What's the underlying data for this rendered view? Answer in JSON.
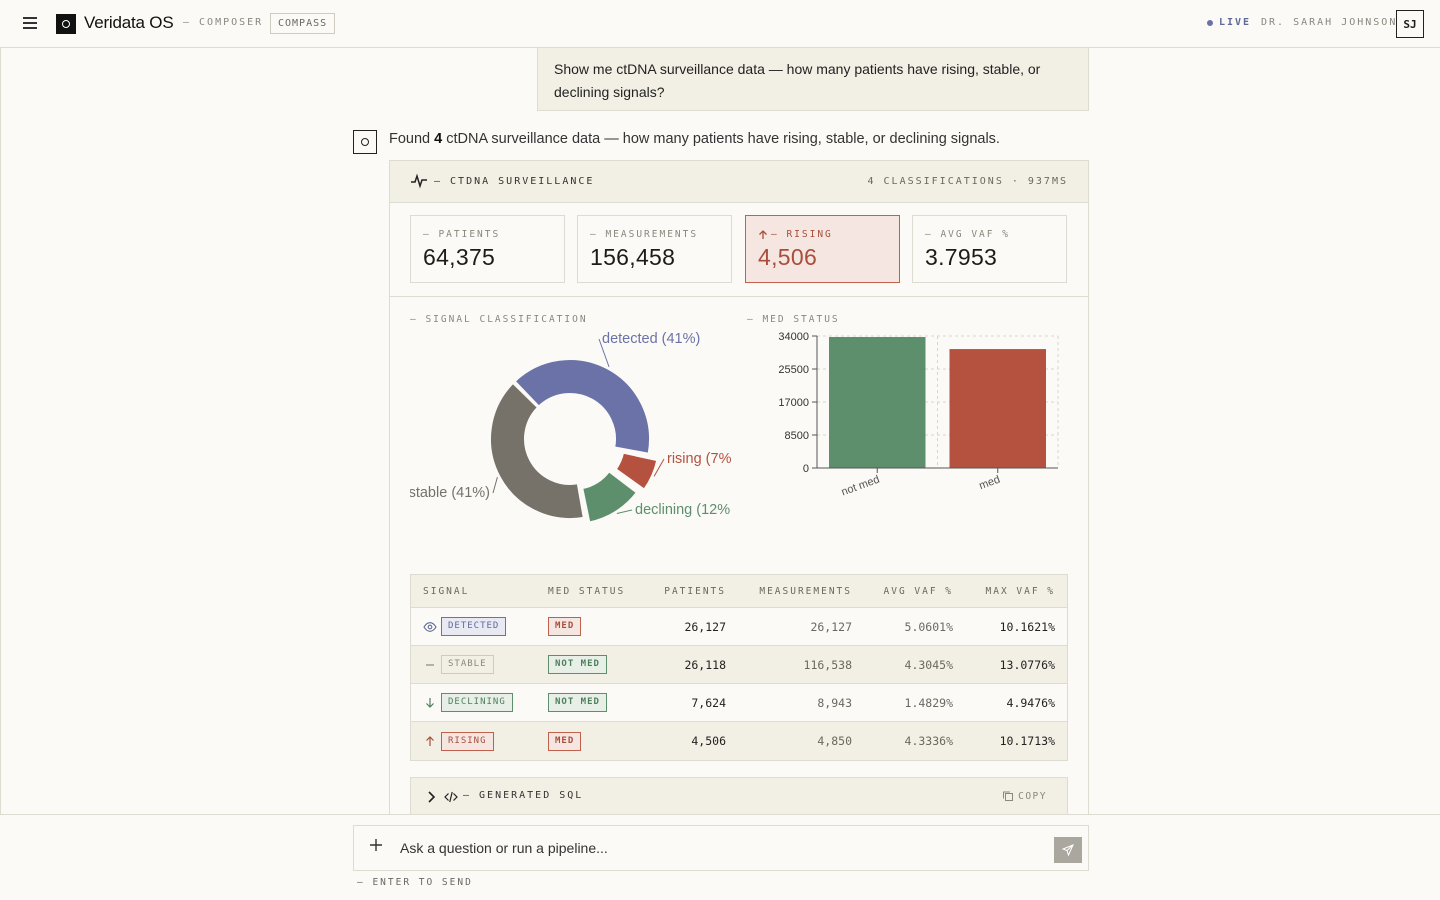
{
  "topbar": {
    "app_title": "Veridata OS",
    "nav_composer": "— COMPOSER",
    "nav_compass": "COMPASS",
    "live_label": "LIVE",
    "user_name": "DR. SARAH JOHNSON",
    "avatar_initials": "SJ"
  },
  "conversation": {
    "user_message": "Show me ctDNA surveillance data — how many patients have rising, stable, or declining signals?",
    "answer_prefix": "Found",
    "answer_count": "4",
    "answer_suffix": "ctDNA surveillance data — how many patients have rising, stable, or declining signals."
  },
  "panel": {
    "title": "— CTDNA SURVEILLANCE",
    "meta": "4 CLASSIFICATIONS · 937MS",
    "kpis": [
      {
        "label": "— PATIENTS",
        "value": "64,375"
      },
      {
        "label": "— MEASUREMENTS",
        "value": "156,458"
      },
      {
        "label": "— RISING",
        "value": "4,506"
      },
      {
        "label": "— AVG VAF %",
        "value": "3.7953"
      }
    ],
    "donut_title": "— SIGNAL CLASSIFICATION",
    "bar_title": "— MED STATUS",
    "table": {
      "headers": [
        "SIGNAL",
        "MED STATUS",
        "PATIENTS",
        "MEASUREMENTS",
        "AVG VAF %",
        "MAX VAF %"
      ],
      "rows": [
        {
          "signal": "DETECTED",
          "med": "MED",
          "patients": "26,127",
          "measurements": "26,127",
          "avg": "5.0601%",
          "max": "10.1621%"
        },
        {
          "signal": "STABLE",
          "med": "NOT MED",
          "patients": "26,118",
          "measurements": "116,538",
          "avg": "4.3045%",
          "max": "13.0776%"
        },
        {
          "signal": "DECLINING",
          "med": "NOT MED",
          "patients": "7,624",
          "measurements": "8,943",
          "avg": "1.4829%",
          "max": "4.9476%"
        },
        {
          "signal": "RISING",
          "med": "MED",
          "patients": "4,506",
          "measurements": "4,850",
          "avg": "4.3336%",
          "max": "10.1713%"
        }
      ]
    },
    "sql_label": "— GENERATED SQL",
    "copy_label": "COPY"
  },
  "composer": {
    "placeholder": "Ask a question or run a pipeline...",
    "hint": "— ENTER TO SEND"
  },
  "colors": {
    "detected": "#6b72a8",
    "stable": "#76726a",
    "declining": "#5d8f6c",
    "rising": "#b5513f"
  },
  "chart_data": [
    {
      "type": "pie",
      "categories": [
        "detected",
        "rising",
        "declining",
        "stable"
      ],
      "values": [
        41,
        7,
        12,
        41
      ],
      "labels": [
        "detected (41%)",
        "rising (7%",
        "declining (12%",
        "stable (41%)"
      ],
      "colors": [
        "#6b72a8",
        "#b5513f",
        "#5d8f6c",
        "#76726a"
      ]
    },
    {
      "type": "bar",
      "categories": [
        "not med",
        "med"
      ],
      "values": [
        33742,
        30633
      ],
      "ylim": [
        0,
        34000
      ],
      "yticks": [
        "0",
        "8500",
        "17000",
        "25500",
        "34000"
      ],
      "colors": [
        "#5d8f6c",
        "#b5513f"
      ],
      "grid": true
    }
  ]
}
